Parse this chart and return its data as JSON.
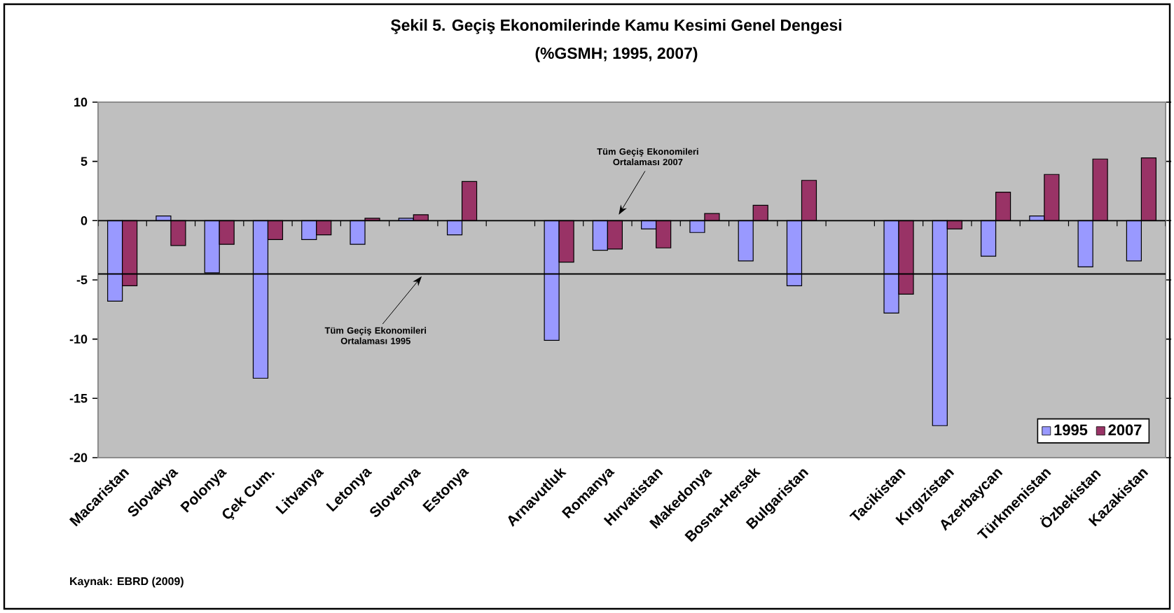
{
  "chart_data": {
    "type": "bar",
    "title": "Şekil 5. Geçiş Ekonomilerinde Kamu Kesimi Genel Dengesi",
    "subtitle": "(%GSMH; 1995, 2007)",
    "categories": [
      "Macaristan",
      "Slovakya",
      "Polonya",
      "Çek Cum.",
      "Litvanya",
      "Letonya",
      "Slovenya",
      "Estonya",
      null,
      "Arnavutluk",
      "Romanya",
      "Hırvatistan",
      "Makedonya",
      "Bosna-Hersek",
      "Bulgaristan",
      null,
      "Tacikistan",
      "Kırgızistan",
      "Azerbaycan",
      "Türkmenistan",
      "Özbekistan",
      "Kazakistan"
    ],
    "series": [
      {
        "name": "1995",
        "color": "#9999ff",
        "values": [
          -6.8,
          0.4,
          -4.4,
          -13.3,
          -1.6,
          -2.0,
          0.2,
          -1.2,
          null,
          -10.1,
          -2.5,
          -0.7,
          -1.0,
          -3.4,
          -5.5,
          null,
          -7.8,
          -17.3,
          -3.0,
          0.4,
          -3.9,
          -3.4
        ]
      },
      {
        "name": "2007",
        "color": "#993366",
        "values": [
          -5.5,
          -2.1,
          -2.0,
          -1.6,
          -1.2,
          0.2,
          0.5,
          3.3,
          null,
          -3.5,
          -2.4,
          -2.3,
          0.6,
          1.3,
          3.4,
          null,
          -6.2,
          -0.7,
          2.4,
          3.9,
          5.2,
          5.3
        ]
      }
    ],
    "ylim": [
      -20,
      10
    ],
    "yticks": [
      -20,
      -15,
      -10,
      -5,
      0,
      5,
      10
    ],
    "ref_lines": [
      {
        "axis": "y",
        "value": -4.5,
        "label": "Tüm Geçiş Ekonomileri Ortalaması 1995",
        "color": "#000000"
      },
      {
        "axis": "y",
        "value": 0,
        "label": "Tüm Geçiş Ekonomileri Ortalaması 2007",
        "color": "#000000"
      }
    ],
    "annotations": [
      "Kaynak: EBRD (2009)"
    ],
    "legend": "bottom right"
  }
}
